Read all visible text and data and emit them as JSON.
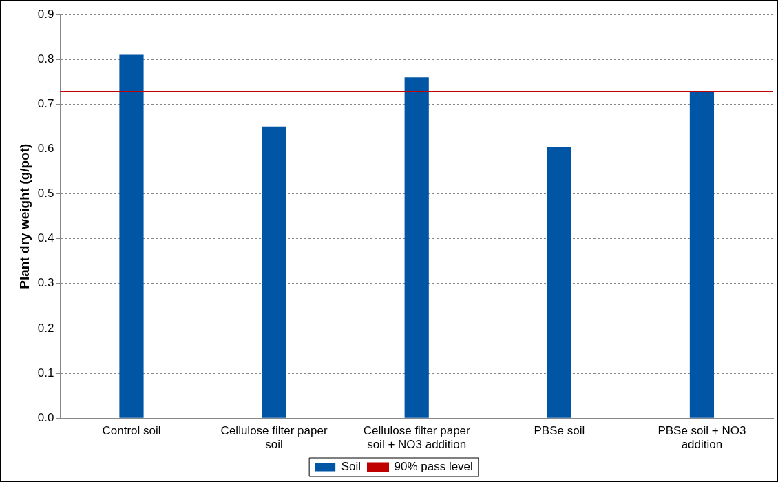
{
  "chart_data": {
    "type": "bar",
    "ylabel": "Plant dry weight (g/pot)",
    "categories": [
      "Control soil",
      "Cellulose filter paper soil",
      "Cellulose filter paper soil + NO3 addition",
      "PBSe soil",
      "PBSe soil + NO3 addition"
    ],
    "series": [
      {
        "name": "Soil",
        "color": "#0055a5",
        "values": [
          0.81,
          0.65,
          0.76,
          0.605,
          0.727
        ]
      }
    ],
    "ylim": [
      0,
      0.9
    ],
    "yticks": [
      {
        "value": 0,
        "label": "0.0"
      },
      {
        "value": 0.1,
        "label": "0.1"
      },
      {
        "value": 0.2,
        "label": "0.2"
      },
      {
        "value": 0.3,
        "label": "0.3"
      },
      {
        "value": 0.4,
        "label": "0.4"
      },
      {
        "value": 0.5,
        "label": "0.5"
      },
      {
        "value": 0.6,
        "label": "0.6"
      },
      {
        "value": 0.7,
        "label": "0.7"
      },
      {
        "value": 0.8,
        "label": "0.8"
      },
      {
        "value": 0.9,
        "label": "0.9"
      }
    ],
    "ref_lines": [
      {
        "axis": "y",
        "value": 0.728,
        "label": "90% pass level",
        "color": "#c00000",
        "line_style": "solid"
      }
    ],
    "grid": "y",
    "legend": "bottom"
  }
}
